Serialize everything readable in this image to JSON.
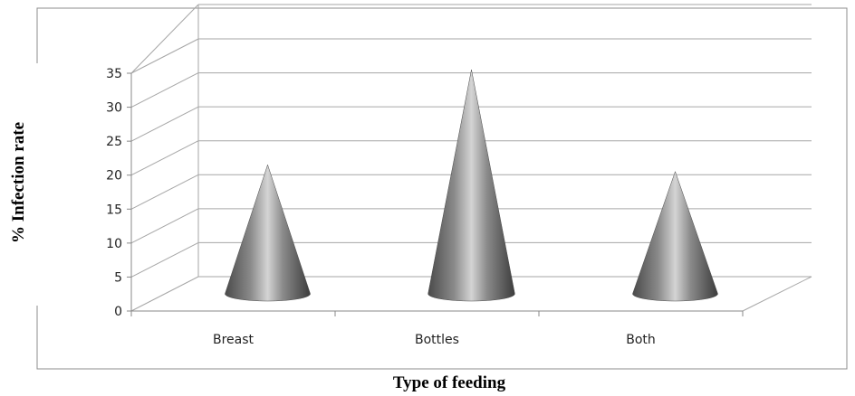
{
  "chart_data": {
    "type": "bar",
    "style": "3d-cone",
    "categories": [
      "Breast",
      "Bottles",
      "Both"
    ],
    "values": [
      19,
      33,
      18
    ],
    "xlabel": "Type of feeding",
    "ylabel": "% Infection rate",
    "ylim": [
      0,
      35
    ],
    "yticks": [
      "0",
      "5",
      "10",
      "15",
      "20",
      "25",
      "30",
      "35"
    ],
    "grid": true,
    "legend": "none",
    "colors": {
      "cone": "#6a6a6a",
      "highlight": "#d4d4d4",
      "grid": "#a6a6a6"
    }
  }
}
